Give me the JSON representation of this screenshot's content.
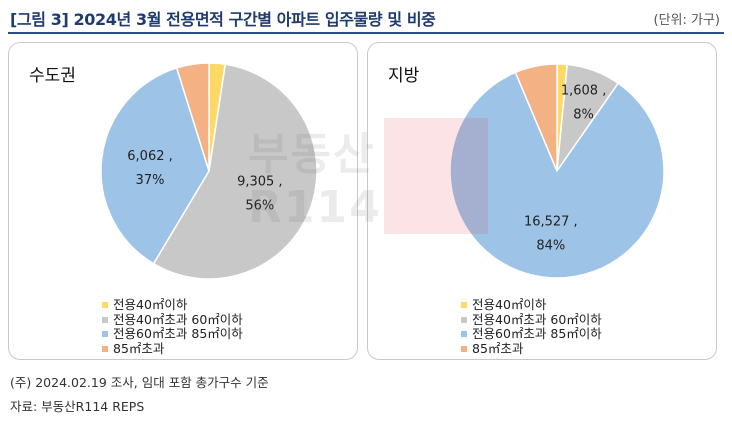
{
  "header": {
    "title": "[그림 3] 2024년 3월 전용면적 구간별 아파트 입주물량 및 비중",
    "unit": "(단위: 가구)"
  },
  "legend": [
    {
      "label": "전용40㎡이하",
      "color": "#ffd966"
    },
    {
      "label": "전용40㎡초과 60㎡이하",
      "color": "#c8c8c8"
    },
    {
      "label": "전용60㎡초과 85㎡이하",
      "color": "#9dc3e6"
    },
    {
      "label": "85㎡초과",
      "color": "#f4b183"
    }
  ],
  "chart_data": [
    {
      "type": "pie",
      "title": "수도권",
      "categories": [
        "전용40㎡이하",
        "전용40㎡초과 60㎡이하",
        "전용60㎡초과 85㎡이하",
        "85㎡초과"
      ],
      "values": [
        400,
        9305,
        6062,
        800
      ],
      "shares": [
        2,
        56,
        37,
        5
      ],
      "data_labels": [
        {
          "category": "전용40㎡이하",
          "value": "",
          "percent": ""
        },
        {
          "category": "전용40㎡초과 60㎡이하",
          "value": "9,305 ,",
          "percent": "56%"
        },
        {
          "category": "전용60㎡초과 85㎡이하",
          "value": "6,062 ,",
          "percent": "37%"
        },
        {
          "category": "85㎡초과",
          "value": "",
          "percent": ""
        }
      ],
      "colors": [
        "#ffd966",
        "#c8c8c8",
        "#9dc3e6",
        "#f4b183"
      ]
    },
    {
      "type": "pie",
      "title": "지방",
      "categories": [
        "전용40㎡이하",
        "전용40㎡초과 60㎡이하",
        "전용60㎡초과 85㎡이하",
        "85㎡초과"
      ],
      "values": [
        300,
        1608,
        16527,
        1250
      ],
      "shares": [
        2,
        8,
        84,
        6
      ],
      "data_labels": [
        {
          "category": "전용40㎡이하",
          "value": "",
          "percent": ""
        },
        {
          "category": "전용40㎡초과 60㎡이하",
          "value": "1,608 ,",
          "percent": "8%"
        },
        {
          "category": "전용60㎡초과 85㎡이하",
          "value": "16,527 ,",
          "percent": "84%"
        },
        {
          "category": "85㎡초과",
          "value": "",
          "percent": ""
        }
      ],
      "colors": [
        "#ffd966",
        "#c8c8c8",
        "#9dc3e6",
        "#f4b183"
      ]
    }
  ],
  "footnotes": {
    "note": "(주) 2024.02.19 조사, 임대 포함 총가구수 기준",
    "source": "자료: 부동산R114 REPS"
  },
  "watermark": {
    "text": "부동산 R114"
  }
}
